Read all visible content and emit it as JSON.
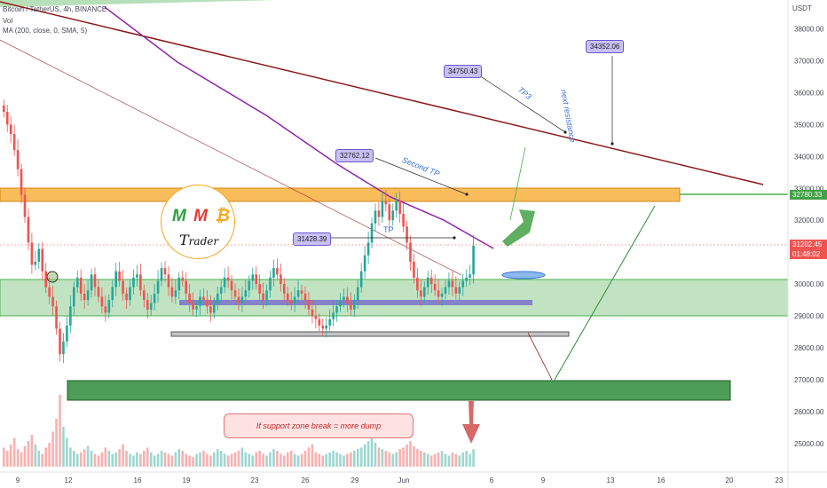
{
  "header": {
    "symbol_line": "Bitcoin / TetherUS, 4h, BINANCE",
    "vol_label": "Vol",
    "ma_label": "MA (200, close, 0, SMA, 5)"
  },
  "price_axis": {
    "currency": "USDT",
    "ticks": [
      "38000.00",
      "37000.00",
      "36000.00",
      "35000.00",
      "34000.00",
      "33000.00",
      "32000.00",
      "31000.00",
      "30000.00",
      "29000.00",
      "28000.00",
      "27000.00",
      "26000.00",
      "25000.00"
    ],
    "last_price": "31202.45",
    "countdown": "01:48:02",
    "resistance_tag": "32780.33"
  },
  "time_axis": {
    "ticks": [
      "9",
      "12",
      "16",
      "19",
      "23",
      "26",
      "29",
      "Jun",
      "6",
      "9",
      "13",
      "16",
      "20",
      "23"
    ]
  },
  "annotations": {
    "callouts": [
      "34352.06",
      "34750.43",
      "32762.12",
      "31428.39"
    ],
    "tp3": "TP3",
    "next_resistance": "next resistance",
    "second_tp": "Second TP",
    "tp_small": "TP",
    "dump_note": "If support zone break = more dump",
    "logo_text": "rader",
    "logo_letters": [
      "M",
      "M",
      "₿",
      "T"
    ]
  },
  "colors": {
    "up": "#26a69a",
    "down": "#ef5350",
    "zone_green": "#4caf50",
    "zone_orange": "#f5a623",
    "ma": "#8e24aa",
    "trend": "#8b1a1a",
    "resistance": "#4caf50",
    "last_price": "#ef5350"
  },
  "chart_data": {
    "type": "candlestick",
    "symbol": "Bitcoin / TetherUS",
    "interval": "4h",
    "exchange": "BINANCE",
    "ylim": [
      24600,
      38800
    ],
    "grid": false,
    "x_ticks": [
      "9",
      "12",
      "16",
      "19",
      "23",
      "26",
      "29",
      "Jun",
      "6",
      "9",
      "13",
      "16",
      "20",
      "23"
    ],
    "price_levels": {
      "last_price": 31202.45,
      "resistance": 32780.33
    },
    "callout_values": [
      34352.06,
      34750.43,
      32762.12,
      31428.39
    ],
    "zones": [
      {
        "low": 32620,
        "high": 33020
      },
      {
        "low": 29000,
        "high": 30150
      },
      {
        "low": 26300,
        "high": 26920
      }
    ],
    "close_series": [
      35400,
      35000,
      34700,
      34200,
      33600,
      32800,
      32100,
      31300,
      30600,
      30700,
      31100,
      30400,
      29900,
      29600,
      29300,
      28600,
      27800,
      28200,
      28700,
      29300,
      29900,
      30200,
      29700,
      29500,
      29800,
      30300,
      29900,
      29600,
      29300,
      29100,
      29500,
      29900,
      30400,
      30100,
      29700,
      29500,
      29900,
      30200,
      30300,
      29800,
      29500,
      29200,
      29400,
      29700,
      30100,
      30500,
      30300,
      29900,
      29600,
      29800,
      30200,
      30100,
      29700,
      29400,
      29200,
      29300,
      29600,
      29500,
      29300,
      29100,
      29400,
      29700,
      29900,
      30200,
      30100,
      29800,
      29600,
      29400,
      29600,
      29800,
      30100,
      30300,
      30000,
      29700,
      29500,
      29800,
      30200,
      30500,
      30300,
      30000,
      29700,
      29500,
      29400,
      29600,
      29800,
      29700,
      29500,
      29200,
      29000,
      28900,
      28700,
      28600,
      28700,
      28900,
      29100,
      29300,
      29500,
      29600,
      29400,
      29200,
      29500,
      29900,
      30400,
      30900,
      31300,
      31900,
      32300,
      32100,
      32600,
      32500,
      32000,
      32300,
      32600,
      32200,
      31800,
      31300,
      30700,
      30200,
      29800,
      29600,
      29900,
      30200,
      30000,
      29800,
      29600,
      29700,
      29900,
      30100,
      29900,
      29700,
      29900,
      30100,
      30200,
      30300,
      31200
    ],
    "volume_series": [
      12,
      10,
      14,
      18,
      11,
      9,
      13,
      16,
      20,
      14,
      10,
      8,
      12,
      15,
      22,
      30,
      45,
      25,
      18,
      12,
      10,
      8,
      9,
      11,
      13,
      10,
      8,
      7,
      9,
      12,
      10,
      8,
      9,
      11,
      14,
      10,
      8,
      7,
      9,
      8,
      10,
      12,
      9,
      7,
      8,
      10,
      9,
      8,
      7,
      9,
      11,
      10,
      8,
      7,
      6,
      8,
      9,
      10,
      8,
      7,
      9,
      11,
      10,
      8,
      7,
      8,
      9,
      10,
      12,
      9,
      8,
      7,
      9,
      10,
      8,
      7,
      9,
      11,
      10,
      8,
      7,
      9,
      10,
      8,
      7,
      8,
      10,
      12,
      14,
      9,
      8,
      7,
      8,
      9,
      10,
      9,
      8,
      7,
      8,
      9,
      10,
      11,
      12,
      14,
      16,
      18,
      15,
      12,
      11,
      10,
      9,
      8,
      9,
      11,
      12,
      14,
      16,
      13,
      11,
      10,
      9,
      8,
      7,
      8,
      9,
      10,
      8,
      7,
      9,
      8,
      7,
      9,
      10,
      8,
      11
    ]
  }
}
